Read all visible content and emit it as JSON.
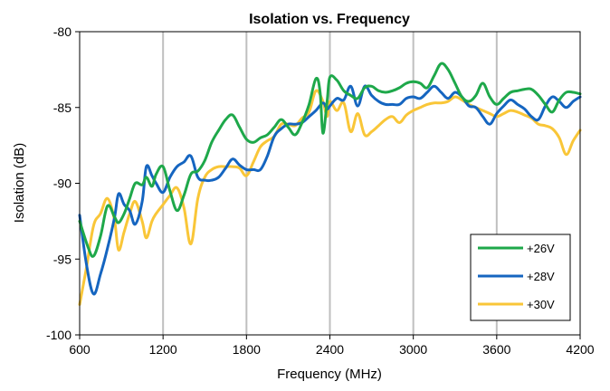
{
  "chart_data": {
    "type": "line",
    "title": "Isolation vs. Frequency",
    "xlabel": "Frequency (MHz)",
    "ylabel": "Isolation (dB)",
    "xlim": [
      600,
      4200
    ],
    "ylim": [
      -100,
      -80
    ],
    "xticks": [
      600,
      1200,
      1800,
      2400,
      3000,
      3600,
      4200
    ],
    "yticks": [
      -80,
      -85,
      -90,
      -95,
      -100
    ],
    "xtick_labels": [
      "600",
      "1200",
      "1800",
      "2400",
      "3000",
      "3600",
      "4200"
    ],
    "ytick_labels": [
      "-80",
      "-85",
      "-90",
      "-95",
      "-100"
    ],
    "grid": "vertical",
    "legend_position": "bottom-right",
    "series": [
      {
        "name": "+26V",
        "color": "#1ea84a",
        "x": [
          600,
          660,
          700,
          750,
          800,
          850,
          880,
          920,
          960,
          1000,
          1050,
          1080,
          1120,
          1150,
          1200,
          1250,
          1300,
          1350,
          1400,
          1450,
          1500,
          1550,
          1600,
          1650,
          1700,
          1750,
          1800,
          1850,
          1900,
          1950,
          2000,
          2050,
          2100,
          2150,
          2200,
          2250,
          2300,
          2330,
          2350,
          2380,
          2400,
          2450,
          2500,
          2550,
          2600,
          2650,
          2700,
          2750,
          2800,
          2850,
          2900,
          2950,
          3000,
          3050,
          3100,
          3150,
          3200,
          3250,
          3300,
          3350,
          3400,
          3450,
          3500,
          3550,
          3600,
          3650,
          3700,
          3750,
          3800,
          3850,
          3900,
          3950,
          4000,
          4050,
          4100,
          4150,
          4200
        ],
        "y": [
          -92.5,
          -94.2,
          -94.8,
          -93.5,
          -91.5,
          -92.2,
          -92.6,
          -92.0,
          -91.0,
          -90.0,
          -90.1,
          -89.6,
          -90.2,
          -89.4,
          -88.9,
          -90.5,
          -91.8,
          -90.8,
          -89.4,
          -89.2,
          -88.5,
          -87.3,
          -86.5,
          -85.8,
          -85.5,
          -86.3,
          -87.1,
          -87.3,
          -87.0,
          -86.8,
          -86.3,
          -85.8,
          -86.3,
          -86.8,
          -86.0,
          -84.8,
          -83.1,
          -84.0,
          -86.7,
          -84.6,
          -83.0,
          -83.2,
          -83.9,
          -84.2,
          -84.4,
          -83.7,
          -83.6,
          -83.9,
          -84.0,
          -83.9,
          -83.7,
          -83.4,
          -83.3,
          -83.4,
          -83.7,
          -82.9,
          -82.1,
          -82.5,
          -83.4,
          -84.3,
          -84.6,
          -84.2,
          -83.4,
          -84.3,
          -84.8,
          -84.4,
          -84.0,
          -83.9,
          -83.8,
          -83.8,
          -84.2,
          -84.8,
          -85.3,
          -84.5,
          -84.0,
          -84.0,
          -84.1
        ]
      },
      {
        "name": "+28V",
        "color": "#1565c0",
        "x": [
          600,
          650,
          700,
          750,
          800,
          850,
          880,
          920,
          960,
          1000,
          1050,
          1080,
          1120,
          1150,
          1200,
          1250,
          1300,
          1350,
          1400,
          1450,
          1500,
          1550,
          1600,
          1650,
          1700,
          1750,
          1800,
          1850,
          1900,
          1950,
          2000,
          2050,
          2100,
          2150,
          2200,
          2250,
          2300,
          2350,
          2380,
          2400,
          2450,
          2500,
          2550,
          2600,
          2650,
          2700,
          2750,
          2800,
          2850,
          2900,
          2950,
          3000,
          3050,
          3100,
          3150,
          3200,
          3250,
          3300,
          3350,
          3400,
          3450,
          3500,
          3550,
          3600,
          3650,
          3700,
          3750,
          3800,
          3850,
          3900,
          3950,
          4000,
          4050,
          4100,
          4150,
          4200
        ],
        "y": [
          -92.1,
          -95.4,
          -97.3,
          -96.0,
          -94.3,
          -92.3,
          -90.7,
          -91.4,
          -91.8,
          -92.7,
          -91.2,
          -88.9,
          -89.5,
          -90.0,
          -90.6,
          -89.6,
          -88.9,
          -88.6,
          -88.2,
          -89.6,
          -89.8,
          -89.8,
          -89.6,
          -89.0,
          -88.4,
          -88.8,
          -89.1,
          -89.1,
          -89.1,
          -88.2,
          -86.9,
          -86.4,
          -86.1,
          -86.1,
          -86.0,
          -85.6,
          -85.2,
          -84.7,
          -85.1,
          -84.9,
          -84.4,
          -84.5,
          -83.6,
          -84.9,
          -83.6,
          -84.2,
          -84.6,
          -84.8,
          -84.8,
          -84.8,
          -84.4,
          -84.3,
          -84.4,
          -84.0,
          -83.6,
          -84.0,
          -84.4,
          -84.0,
          -84.3,
          -84.9,
          -85.0,
          -85.6,
          -86.1,
          -85.4,
          -84.9,
          -84.5,
          -84.8,
          -85.1,
          -85.6,
          -85.8,
          -84.9,
          -84.3,
          -84.6,
          -85.0,
          -84.6,
          -84.3
        ]
      },
      {
        "name": "+30V",
        "color": "#f9c638",
        "x": [
          600,
          650,
          700,
          750,
          800,
          850,
          880,
          920,
          960,
          1000,
          1050,
          1080,
          1120,
          1150,
          1200,
          1250,
          1300,
          1350,
          1400,
          1450,
          1500,
          1550,
          1600,
          1650,
          1700,
          1750,
          1800,
          1850,
          1900,
          1950,
          2000,
          2050,
          2100,
          2150,
          2200,
          2250,
          2300,
          2350,
          2380,
          2400,
          2450,
          2500,
          2550,
          2600,
          2650,
          2700,
          2750,
          2800,
          2850,
          2900,
          2950,
          3000,
          3050,
          3100,
          3150,
          3200,
          3250,
          3300,
          3350,
          3400,
          3450,
          3500,
          3550,
          3600,
          3650,
          3700,
          3750,
          3800,
          3850,
          3900,
          3950,
          4000,
          4050,
          4100,
          4150,
          4200
        ],
        "y": [
          -98.0,
          -95.5,
          -92.8,
          -92.0,
          -91.0,
          -92.4,
          -94.4,
          -93.2,
          -92.0,
          -91.2,
          -92.5,
          -93.6,
          -92.5,
          -92.0,
          -91.4,
          -90.8,
          -90.3,
          -91.6,
          -94.0,
          -91.0,
          -89.6,
          -89.1,
          -88.9,
          -88.9,
          -88.9,
          -89.0,
          -89.5,
          -88.6,
          -87.6,
          -87.2,
          -86.9,
          -86.1,
          -86.1,
          -86.2,
          -85.7,
          -85.3,
          -83.9,
          -84.6,
          -85.6,
          -84.6,
          -85.2,
          -84.7,
          -86.6,
          -85.4,
          -86.8,
          -86.6,
          -86.2,
          -85.8,
          -85.6,
          -86.0,
          -85.5,
          -85.2,
          -85.0,
          -84.8,
          -84.7,
          -84.7,
          -84.6,
          -84.3,
          -84.5,
          -84.8,
          -85.0,
          -85.2,
          -85.4,
          -85.6,
          -85.4,
          -85.2,
          -85.3,
          -85.5,
          -85.7,
          -86.1,
          -86.2,
          -86.4,
          -87.0,
          -88.1,
          -87.2,
          -86.5
        ]
      }
    ]
  }
}
